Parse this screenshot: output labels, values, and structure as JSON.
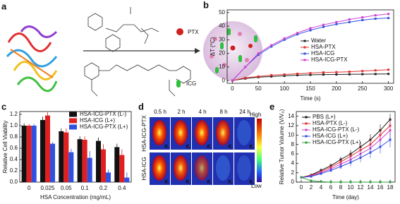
{
  "figure": {
    "panel_labels": [
      "a",
      "b",
      "c",
      "d",
      "e"
    ],
    "scheme_labels": [
      "PTX",
      "ICG"
    ],
    "imaging": {
      "times": [
        "0.5 h",
        "2 h",
        "4 h",
        "8 h",
        "24 h"
      ],
      "rows": [
        "HSA-ICG-PTX",
        "HSA-ICG"
      ],
      "scale": [
        "High",
        "Low"
      ]
    }
  },
  "chart_data": [
    {
      "type": "line",
      "xlabel": "Time (s)",
      "ylabel": "ΔT (°C)",
      "x": [
        0,
        25,
        50,
        75,
        100,
        125,
        150,
        175,
        200,
        225,
        250,
        275,
        300
      ],
      "xlim": [
        -10,
        310
      ],
      "xticks": [
        0,
        50,
        100,
        150,
        200,
        250,
        300
      ],
      "ylim": [
        -2,
        52
      ],
      "yticks": [
        0,
        10,
        20,
        30,
        40,
        50
      ],
      "legend": "center right",
      "series": [
        {
          "name": "Water",
          "color": "#222222",
          "values": [
            0,
            1.5,
            2.5,
            3,
            3.5,
            4,
            4.2,
            4.4,
            4.5,
            4.6,
            4.7,
            4.8,
            4.9
          ]
        },
        {
          "name": "HSA-PTX",
          "color": "#e03030",
          "values": [
            0,
            2,
            3,
            4,
            4.5,
            5,
            5.5,
            6,
            6.2,
            6.5,
            7,
            7.5,
            8
          ]
        },
        {
          "name": "HSA-ICG",
          "color": "#3050e0",
          "values": [
            0,
            10,
            19,
            25,
            30,
            34,
            37,
            39.5,
            41.5,
            43,
            44.5,
            45.5,
            46
          ]
        },
        {
          "name": "HSA-ICG-PTX",
          "color": "#d040d0",
          "values": [
            0,
            10,
            20,
            26,
            31,
            35,
            38.5,
            41,
            43,
            45,
            46.5,
            48,
            49
          ]
        }
      ]
    },
    {
      "type": "bar",
      "xlabel": "HSA Concentration (mg/mL)",
      "ylabel": "Relative Cell Viability",
      "categories": [
        "0",
        "0.025",
        "0.05",
        "0.1",
        "0.2",
        "0.4"
      ],
      "ylim": [
        0,
        1.25
      ],
      "yticks": [
        {
          "value": 0,
          "label": "0.0"
        },
        0.2,
        0.4,
        0.6,
        0.8,
        {
          "value": 1,
          "label": "1.0"
        },
        1.2
      ],
      "legend": "upper right",
      "series": [
        {
          "name": "HSA-ICG-PTX (L-)",
          "color": "#111111",
          "values": [
            1.0,
            1.1,
            0.9,
            0.76,
            0.73,
            0.62
          ],
          "errors": [
            0.04,
            0.06,
            0.05,
            0.05,
            0.06,
            0.06
          ]
        },
        {
          "name": "HSA-ICG (L+)",
          "color": "#e02020",
          "values": [
            1.0,
            1.18,
            0.88,
            0.75,
            0.58,
            0.48
          ],
          "errors": [
            0.03,
            0.06,
            0.07,
            0.06,
            0.09,
            0.1
          ]
        },
        {
          "name": "HSA-ICG-PTX (L+)",
          "color": "#3050e0",
          "values": [
            1.0,
            0.68,
            0.53,
            0.43,
            0.17,
            0.08
          ],
          "errors": [
            0.03,
            0.03,
            0.06,
            0.12,
            0.05,
            0.09
          ]
        }
      ]
    },
    {
      "type": "line",
      "xlabel": "Time (day)",
      "ylabel": "Relative Tumor Volume (V/V₀)",
      "x": [
        0,
        2,
        4,
        6,
        8,
        10,
        12,
        14,
        16,
        18
      ],
      "xlim": [
        -1,
        19
      ],
      "xticks": [
        0,
        2,
        4,
        6,
        8,
        10,
        12,
        14,
        16,
        18
      ],
      "ylim": [
        0,
        15
      ],
      "yticks": [
        0,
        2,
        4,
        6,
        8,
        10,
        12,
        14
      ],
      "legend": "upper left",
      "series": [
        {
          "name": "PBS (L+)",
          "color": "#111111",
          "values": [
            1,
            1.5,
            2.5,
            3.5,
            4.8,
            6,
            7.5,
            9,
            11,
            13.3
          ],
          "errors": [
            0.1,
            0.3,
            0.4,
            0.5,
            0.6,
            0.8,
            1,
            1.2,
            1.3,
            1.2
          ]
        },
        {
          "name": "HSA-PTX (L-)",
          "color": "#e03030",
          "values": [
            1,
            1.4,
            2.2,
            3.2,
            4.3,
            5.5,
            6.8,
            8,
            10,
            12
          ],
          "errors": [
            0.1,
            0.3,
            0.4,
            0.5,
            0.7,
            0.9,
            1.1,
            1.2,
            1.4,
            1.5
          ]
        },
        {
          "name": "HSA-ICG-PTX (L-)",
          "color": "#d040d0",
          "values": [
            1,
            1.3,
            2,
            2.8,
            3.8,
            4.8,
            6,
            7.2,
            9,
            11
          ],
          "errors": [
            0.1,
            0.3,
            0.4,
            0.5,
            0.7,
            0.9,
            1.1,
            1.3,
            1.5,
            1.7
          ]
        },
        {
          "name": "HSA-ICG (L+)",
          "color": "#3050e0",
          "values": [
            1,
            1.2,
            1.8,
            2.5,
            3.3,
            4.2,
            5.2,
            6.3,
            7.5,
            9
          ],
          "errors": [
            0.1,
            0.2,
            0.3,
            0.4,
            0.6,
            0.8,
            1,
            1.2,
            1.4,
            1.6
          ]
        },
        {
          "name": "HSA-ICG-PTX (L+)",
          "color": "#30a040",
          "values": [
            1,
            0.3,
            0.1,
            0,
            0,
            0,
            0,
            0,
            0,
            0
          ],
          "errors": [
            0.1,
            0.1,
            0.05,
            0,
            0,
            0,
            0,
            0,
            0,
            0
          ]
        }
      ]
    }
  ]
}
